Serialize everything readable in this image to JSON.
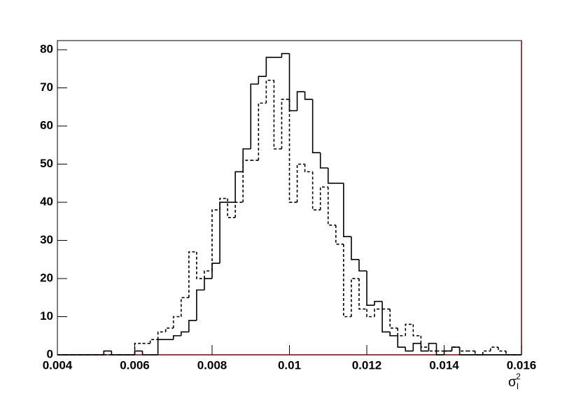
{
  "chart_data": {
    "type": "histogram",
    "xlabel": {
      "base": "σ",
      "sub": "I",
      "sup": "2"
    },
    "bins": [
      0.004,
      0.0042,
      0.0044,
      0.0046,
      0.0048,
      0.005,
      0.0052,
      0.0054,
      0.0056,
      0.0058,
      0.006,
      0.0062,
      0.0064,
      0.0066,
      0.0068,
      0.007,
      0.0072,
      0.0074,
      0.0076,
      0.0078,
      0.008,
      0.0082,
      0.0084,
      0.0086,
      0.0088,
      0.009,
      0.0092,
      0.0094,
      0.0096,
      0.0098,
      0.01,
      0.0102,
      0.0104,
      0.0106,
      0.0108,
      0.011,
      0.0112,
      0.0114,
      0.0116,
      0.0118,
      0.012,
      0.0122,
      0.0124,
      0.0126,
      0.0128,
      0.013,
      0.0132,
      0.0134,
      0.0136,
      0.0138,
      0.014,
      0.0142,
      0.0144,
      0.0146,
      0.0148,
      0.015,
      0.0152,
      0.0154,
      0.0156,
      0.0158,
      0.016
    ],
    "series": [
      {
        "color": "#000000",
        "style": "solid",
        "values": [
          0,
          0,
          0,
          0,
          0,
          0,
          1,
          0,
          0,
          0,
          1,
          0,
          0,
          4,
          4,
          5,
          6,
          9,
          17,
          20,
          24,
          40,
          40,
          48,
          54,
          71,
          73,
          78,
          78,
          79,
          64,
          69,
          67,
          53,
          49,
          45,
          45,
          31,
          25,
          22,
          13,
          14,
          6,
          5,
          2,
          1,
          3,
          1,
          3,
          0,
          1,
          2,
          0,
          0,
          0,
          0,
          0,
          0,
          0,
          0
        ]
      },
      {
        "color": "#000000",
        "style": "dashed",
        "values": [
          0,
          0,
          0,
          0,
          0,
          0,
          0,
          0,
          0,
          0,
          3,
          3,
          4,
          6,
          7,
          10,
          15,
          27,
          20,
          22,
          38,
          41,
          36,
          40,
          51,
          51,
          66,
          72,
          54,
          67,
          40,
          50,
          48,
          38,
          44,
          34,
          29,
          10,
          20,
          12,
          10,
          12,
          12,
          7,
          5,
          8,
          5,
          2,
          1,
          1,
          1,
          2,
          1,
          1,
          0,
          1,
          2,
          1,
          0,
          0
        ]
      }
    ],
    "xlim": [
      0.004,
      0.016
    ],
    "ylim": [
      0,
      82.4
    ],
    "xticks": [
      0.004,
      0.006,
      0.008,
      0.01,
      0.012,
      0.014,
      0.016
    ],
    "yticks": [
      0,
      10,
      20,
      30,
      40,
      50,
      60,
      70,
      80
    ]
  }
}
